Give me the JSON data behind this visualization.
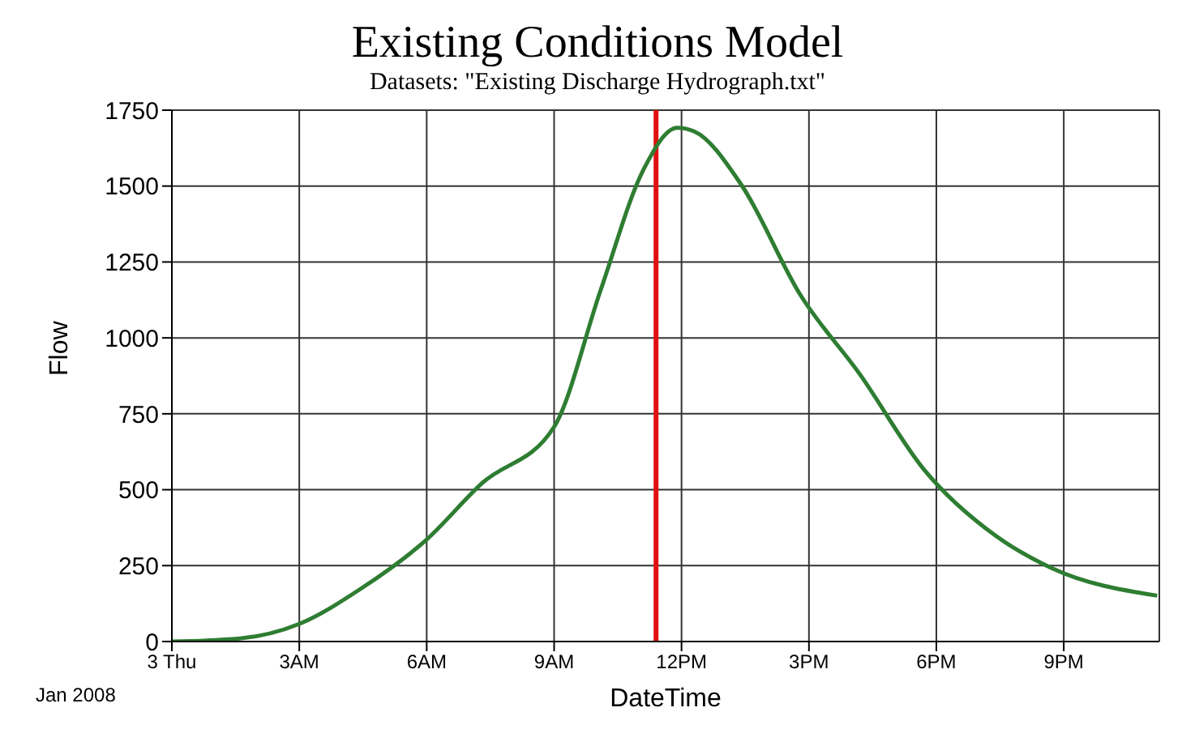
{
  "chart_data": {
    "type": "line",
    "title": "Existing Conditions Model",
    "subtitle": "Datasets: \"Existing Discharge Hydrograph.txt\"",
    "xlabel": "DateTime",
    "ylabel": "Flow",
    "x": [
      "2008-01-03T00:00",
      "2008-01-03T01:36",
      "2008-01-03T03:00",
      "2008-01-03T04:27",
      "2008-01-03T06:00",
      "2008-01-03T07:18",
      "2008-01-03T09:00",
      "2008-01-03T10:06",
      "2008-01-03T11:06",
      "2008-01-03T11:54",
      "2008-01-03T12:18",
      "2008-01-03T13:24",
      "2008-01-03T14:48",
      "2008-01-03T16:12",
      "2008-01-03T17:42",
      "2008-01-03T19:24",
      "2008-01-03T20:42",
      "2008-01-03T23:12"
    ],
    "series": [
      {
        "color": "#2e7d32",
        "values": [
          0,
          10,
          58,
          174,
          336,
          521,
          707,
          1159,
          1553,
          1692,
          1680,
          1506,
          1141,
          880,
          568,
          348,
          243,
          151
        ]
      }
    ],
    "xlim": [
      "2008-01-03T00:00",
      "2008-01-03T23:15"
    ],
    "xticks": [
      {
        "value": "2008-01-03T00:00",
        "label": "3 Thu"
      },
      {
        "value": "2008-01-03T03:00",
        "label": "3AM"
      },
      {
        "value": "2008-01-03T06:00",
        "label": "6AM"
      },
      {
        "value": "2008-01-03T09:00",
        "label": "9AM"
      },
      {
        "value": "2008-01-03T12:00",
        "label": "12PM"
      },
      {
        "value": "2008-01-03T15:00",
        "label": "3PM"
      },
      {
        "value": "2008-01-03T18:00",
        "label": "6PM"
      },
      {
        "value": "2008-01-03T21:00",
        "label": "9PM"
      }
    ],
    "ylim": [
      0,
      1750
    ],
    "yticks": [
      0,
      250,
      500,
      750,
      1000,
      1250,
      1500,
      1750
    ],
    "grid": true,
    "marker": "none",
    "line_style": "solid",
    "ref_lines": [
      {
        "axis": "x",
        "value": "2008-01-03T11:24",
        "color": "#e01010",
        "line_style": "solid"
      }
    ],
    "annotations": [
      "Jan 2008"
    ]
  }
}
